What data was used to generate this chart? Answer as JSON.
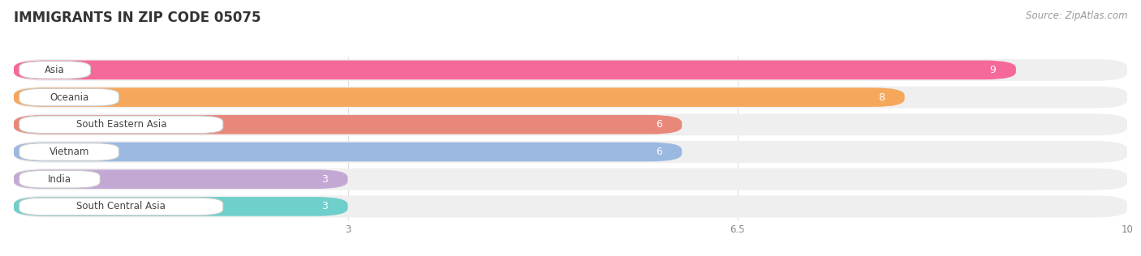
{
  "title": "IMMIGRANTS IN ZIP CODE 05075",
  "source": "Source: ZipAtlas.com",
  "categories": [
    "Asia",
    "Oceania",
    "South Eastern Asia",
    "Vietnam",
    "India",
    "South Central Asia"
  ],
  "values": [
    9,
    8,
    6,
    6,
    3,
    3
  ],
  "bar_colors": [
    "#F5689A",
    "#F5A85C",
    "#E8887A",
    "#9BB8E0",
    "#C4A8D4",
    "#6ECFCB"
  ],
  "xlim_start": 0,
  "xlim_end": 10,
  "xticks": [
    3,
    6.5,
    10
  ],
  "title_fontsize": 12,
  "source_fontsize": 8.5,
  "bar_label_fontsize": 8.5,
  "value_label_fontsize": 9,
  "background_color": "#FFFFFF",
  "bar_bg_color": "#F0EFEF",
  "label_bg_color": "#FFFFFF",
  "value_inside_bar_color": "#FFFFFF",
  "value_outside_bar_color": "#888888"
}
